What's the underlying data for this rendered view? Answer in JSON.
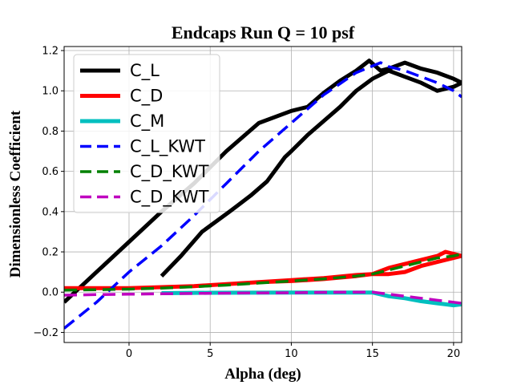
{
  "chart_data": {
    "type": "line",
    "title": "Endcaps Run Q = 10 psf",
    "xlabel": "Alpha (deg)",
    "ylabel": "Dimensionless Coefficient",
    "xlim": [
      -4,
      20.5
    ],
    "ylim": [
      -0.25,
      1.22
    ],
    "xticks": [
      0,
      5,
      10,
      15,
      20
    ],
    "yticks": [
      -0.2,
      0.0,
      0.2,
      0.4,
      0.6,
      0.8,
      1.0,
      1.2
    ],
    "ytick_labels": [
      "−0.2",
      "0.0",
      "0.2",
      "0.4",
      "0.6",
      "0.8",
      "1.0",
      "1.2"
    ],
    "grid": true,
    "legend_position": "top-left",
    "series": [
      {
        "name": "C_L",
        "color": "#000000",
        "style": "solid",
        "x": [
          -4,
          -2,
          0,
          2,
          4,
          6,
          8,
          10,
          11,
          12,
          13,
          14,
          14.8,
          15.5,
          16,
          17,
          18,
          19,
          20,
          20.5,
          20,
          19,
          18,
          17,
          16,
          15,
          14,
          13,
          12,
          11,
          10,
          9.6,
          8.5,
          7.5,
          6.2,
          4.5,
          3.2,
          2
        ],
        "y": [
          -0.05,
          0.1,
          0.25,
          0.4,
          0.54,
          0.7,
          0.84,
          0.9,
          0.92,
          0.99,
          1.05,
          1.1,
          1.15,
          1.1,
          1.11,
          1.14,
          1.11,
          1.09,
          1.06,
          1.04,
          1.02,
          1.0,
          1.04,
          1.07,
          1.1,
          1.06,
          1.0,
          0.92,
          0.85,
          0.78,
          0.7,
          0.67,
          0.55,
          0.48,
          0.4,
          0.3,
          0.18,
          0.08
        ]
      },
      {
        "name": "C_D",
        "color": "#ff0000",
        "style": "solid",
        "x": [
          -4,
          -2,
          0,
          2,
          4,
          6,
          8,
          10,
          12,
          14,
          15,
          16,
          17,
          18,
          19,
          19.5,
          20,
          20.5,
          20,
          19,
          18,
          17,
          16,
          15,
          14,
          12,
          10,
          8,
          6,
          4,
          2,
          0,
          -2,
          -4
        ],
        "y": [
          0.02,
          0.02,
          0.02,
          0.025,
          0.03,
          0.04,
          0.05,
          0.055,
          0.065,
          0.08,
          0.09,
          0.12,
          0.14,
          0.16,
          0.18,
          0.2,
          0.19,
          0.18,
          0.17,
          0.15,
          0.13,
          0.1,
          0.09,
          0.09,
          0.085,
          0.07,
          0.06,
          0.05,
          0.04,
          0.03,
          0.025,
          0.02,
          0.02,
          0.02
        ]
      },
      {
        "name": "C_M",
        "color": "#00bfbf",
        "style": "solid",
        "x": [
          2,
          5,
          10,
          13,
          15,
          16,
          17,
          18,
          19,
          20,
          20.5
        ],
        "y": [
          -0.005,
          -0.003,
          -0.002,
          -0.002,
          -0.002,
          -0.02,
          -0.03,
          -0.045,
          -0.055,
          -0.065,
          -0.06
        ]
      },
      {
        "name": "C_L_KWT",
        "color": "#0000ff",
        "style": "dashed",
        "x": [
          -4,
          -2,
          0,
          2,
          4,
          6,
          8,
          10,
          12,
          14,
          15.5,
          16,
          17,
          18,
          19,
          20,
          20.5
        ],
        "y": [
          -0.18,
          -0.05,
          0.1,
          0.23,
          0.38,
          0.54,
          0.7,
          0.84,
          0.98,
          1.09,
          1.14,
          1.12,
          1.1,
          1.07,
          1.04,
          1.0,
          0.97
        ]
      },
      {
        "name": "C_D_KWT",
        "color": "#008000",
        "style": "dashed",
        "x": [
          -4,
          -2,
          0,
          2,
          4,
          6,
          8,
          10,
          12,
          14,
          15,
          16,
          17,
          18,
          19,
          20,
          20.5
        ],
        "y": [
          0.01,
          0.012,
          0.015,
          0.02,
          0.027,
          0.035,
          0.045,
          0.055,
          0.066,
          0.08,
          0.09,
          0.11,
          0.13,
          0.15,
          0.17,
          0.18,
          0.19
        ]
      },
      {
        "name": "C_D_KWT",
        "color": "#bf00bf",
        "style": "dashed",
        "x": [
          -4,
          -2,
          0,
          2,
          4,
          6,
          8,
          10,
          12,
          14,
          15,
          16,
          17,
          18,
          19,
          20,
          20.5
        ],
        "y": [
          -0.015,
          -0.012,
          -0.01,
          -0.008,
          -0.006,
          -0.005,
          -0.004,
          -0.003,
          -0.001,
          0.0,
          0.0,
          -0.01,
          -0.02,
          -0.03,
          -0.04,
          -0.05,
          -0.055
        ]
      }
    ]
  }
}
